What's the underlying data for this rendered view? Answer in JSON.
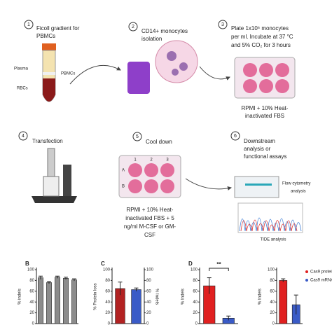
{
  "steps": [
    {
      "number": "1",
      "lines": [
        "Ficoll gradient for",
        "PBMCs"
      ],
      "labels": [
        "Plasma",
        "PBMCs",
        "RBCs"
      ]
    },
    {
      "number": "2",
      "lines": [
        "CD14+ monocytes",
        "isolation"
      ]
    },
    {
      "number": "3",
      "lines": [
        "Plate 1x10⁶ monocytes",
        "per ml. Incubate at 37 °C",
        "and 5% CO₂ for 3 hours"
      ],
      "caption": [
        "RPMI + 10% Heat-",
        "inactivated FBS"
      ]
    },
    {
      "number": "4",
      "lines": [
        "Transfection"
      ]
    },
    {
      "number": "5",
      "lines": [
        "Cool down"
      ],
      "caption": [
        "RPMI + 10% Heat-",
        "inactivated FBS + 5",
        "ng/ml M-CSF or GM-",
        "CSF"
      ]
    },
    {
      "number": "6",
      "lines": [
        "Downstream",
        "analysis or",
        "functional assays"
      ],
      "labels": [
        "Flow cytometry",
        "analysis",
        "TIDE analysis"
      ]
    }
  ],
  "plate_labels": [
    "1",
    "2",
    "3",
    "A",
    "B"
  ],
  "chart_data": [
    {
      "type": "bar",
      "label": "B",
      "ylabel": "% indels",
      "categories": [
        null,
        null,
        null,
        null,
        null
      ],
      "values": [
        85,
        76,
        86,
        84,
        81
      ],
      "errors": [
        3,
        2,
        2,
        2,
        2
      ],
      "color": "#8c8c8c",
      "ylim": [
        0,
        100
      ],
      "yticks": [
        0,
        20,
        40,
        60,
        80,
        100
      ]
    },
    {
      "type": "bar",
      "label": "C",
      "ylabel": "% Protein loss",
      "y2label": "% Indels",
      "categories": [
        null,
        null
      ],
      "values": [
        65,
        63
      ],
      "errors": [
        12,
        3
      ],
      "colors": [
        "#b22222",
        "#3a5bc7"
      ],
      "ylim": [
        0,
        100
      ],
      "yticks": [
        0,
        20,
        40,
        60,
        80,
        100
      ],
      "y2lim": [
        0,
        100
      ],
      "y2ticks": [
        0,
        20,
        40,
        60,
        80,
        100
      ]
    },
    {
      "type": "bar",
      "label": "D",
      "ylabel": "% Indels",
      "categories": [
        null,
        null
      ],
      "values": [
        70,
        10
      ],
      "errors": [
        15,
        4
      ],
      "colors": [
        "#e02020",
        "#3a5bc7"
      ],
      "annotation": "**",
      "ylim": [
        0,
        100
      ],
      "yticks": [
        0,
        20,
        40,
        60,
        80,
        100
      ]
    },
    {
      "type": "bar",
      "ylabel": "% Indels",
      "categories": [
        null,
        null
      ],
      "series": [
        {
          "name": "Cas9 protein",
          "color": "#e02020",
          "values": [
            80,
            null
          ],
          "errors": [
            3,
            null
          ]
        },
        {
          "name": "Cas9 mRNA",
          "color": "#3a5bc7",
          "values": [
            null,
            35
          ],
          "errors": [
            null,
            18
          ]
        }
      ],
      "ylim": [
        0,
        100
      ],
      "yticks": [
        0,
        20,
        40,
        60,
        80,
        100
      ]
    }
  ]
}
